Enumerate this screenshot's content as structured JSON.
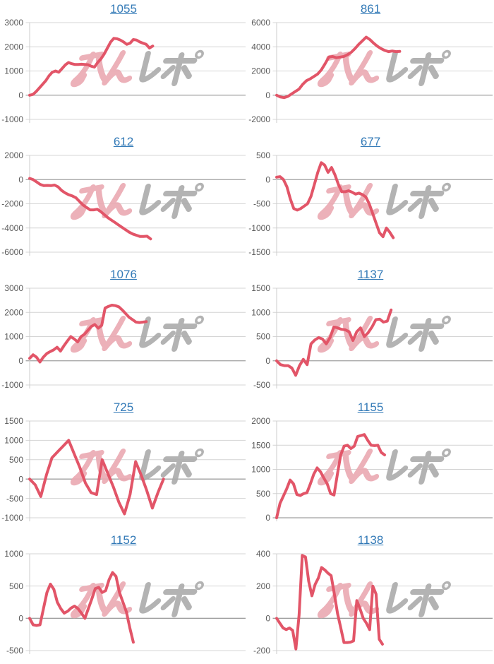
{
  "page": {
    "background": "#ffffff"
  },
  "watermark": {
    "text_pink": "みん",
    "text_gray": "レポ",
    "pink_color": "#eaa9b2",
    "gray_color": "#ababab"
  },
  "chart_style": {
    "line_color": "#e25568",
    "grid_color": "#d4d4d4",
    "zero_line_color": "#a0a0a0",
    "axis_color": "#cccccc",
    "label_color": "#595959",
    "title_color": "#337ab7"
  },
  "chart_data": [
    {
      "type": "line",
      "title": "1055",
      "yticks": [
        3000,
        2000,
        1000,
        0,
        -1000
      ],
      "ylim": [
        -1000,
        3000
      ],
      "span": 0.57,
      "values": [
        0,
        30,
        150,
        300,
        450,
        600,
        800,
        950,
        1000,
        950,
        1100,
        1250,
        1350,
        1300,
        1270,
        1270,
        1280,
        1270,
        1260,
        1200,
        1160,
        1350,
        1500,
        1700,
        1950,
        2200,
        2350,
        2330,
        2280,
        2200,
        2100,
        2150,
        2300,
        2280,
        2200,
        2150,
        2100,
        1950,
        2030
      ]
    },
    {
      "type": "line",
      "title": "861",
      "yticks": [
        6000,
        4000,
        2000,
        0,
        -2000
      ],
      "ylim": [
        -2000,
        6000
      ],
      "span": 0.57,
      "values": [
        0,
        -150,
        -200,
        -100,
        100,
        300,
        500,
        900,
        1200,
        1350,
        1550,
        1750,
        2100,
        2600,
        3150,
        3200,
        3100,
        3150,
        3200,
        3350,
        3550,
        3850,
        4200,
        4500,
        4800,
        4600,
        4300,
        4050,
        3850,
        3700,
        3600,
        3650,
        3600,
        3620
      ]
    },
    {
      "type": "line",
      "title": "612",
      "yticks": [
        2000,
        0,
        -2000,
        -4000,
        -6000
      ],
      "ylim": [
        -6000,
        2000
      ],
      "span": 0.56,
      "values": [
        100,
        0,
        -200,
        -400,
        -500,
        -480,
        -500,
        -450,
        -600,
        -900,
        -1100,
        -1250,
        -1350,
        -1500,
        -1800,
        -2100,
        -2300,
        -2500,
        -2500,
        -2450,
        -2650,
        -2900,
        -3150,
        -3350,
        -3550,
        -3750,
        -3950,
        -4150,
        -4350,
        -4500,
        -4600,
        -4700,
        -4700,
        -4680,
        -4900
      ]
    },
    {
      "type": "line",
      "title": "677",
      "yticks": [
        500,
        0,
        -500,
        -1000,
        -1500
      ],
      "ylim": [
        -1500,
        500
      ],
      "span": 0.54,
      "values": [
        50,
        60,
        0,
        -150,
        -400,
        -600,
        -630,
        -600,
        -550,
        -500,
        -350,
        -100,
        150,
        350,
        300,
        150,
        250,
        100,
        -100,
        -250,
        -250,
        -230,
        -260,
        -300,
        -280,
        -310,
        -360,
        -500,
        -700,
        -900,
        -1100,
        -1180,
        -1000,
        -1090,
        -1200
      ]
    },
    {
      "type": "line",
      "title": "1076",
      "yticks": [
        3000,
        2000,
        1000,
        0,
        -1000
      ],
      "ylim": [
        -1000,
        3000
      ],
      "span": 0.54,
      "values": [
        100,
        250,
        150,
        -50,
        150,
        300,
        380,
        450,
        560,
        400,
        620,
        820,
        1000,
        900,
        780,
        1000,
        1100,
        1260,
        1420,
        1500,
        1350,
        1460,
        2180,
        2250,
        2300,
        2280,
        2230,
        2100,
        1950,
        1800,
        1700,
        1600,
        1580,
        1600,
        1620
      ]
    },
    {
      "type": "line",
      "title": "1137",
      "yticks": [
        1500,
        1000,
        500,
        0,
        -500
      ],
      "ylim": [
        -500,
        1500
      ],
      "span": 0.53,
      "values": [
        0,
        -80,
        -100,
        -100,
        -150,
        -300,
        -100,
        30,
        -80,
        350,
        430,
        480,
        450,
        350,
        480,
        700,
        680,
        650,
        640,
        600,
        420,
        600,
        680,
        500,
        580,
        700,
        850,
        860,
        800,
        820,
        1050
      ]
    },
    {
      "type": "line",
      "title": "725",
      "yticks": [
        1500,
        1000,
        500,
        0,
        -500,
        -1000
      ],
      "ylim": [
        -1000,
        1500
      ],
      "span": 0.62,
      "values": [
        0,
        -150,
        -450,
        100,
        550,
        700,
        850,
        1000,
        650,
        300,
        -100,
        -350,
        -400,
        500,
        150,
        -200,
        -600,
        -900,
        -400,
        450,
        100,
        -300,
        -750,
        -350,
        0
      ]
    },
    {
      "type": "line",
      "title": "1155",
      "yticks": [
        2000,
        1500,
        1000,
        500,
        0
      ],
      "ylim": [
        0,
        2000
      ],
      "span": 0.5,
      "values": [
        0,
        300,
        450,
        600,
        780,
        700,
        480,
        460,
        500,
        520,
        700,
        900,
        1030,
        950,
        820,
        700,
        500,
        470,
        900,
        1300,
        1480,
        1500,
        1430,
        1480,
        1680,
        1700,
        1720,
        1600,
        1500,
        1490,
        1500,
        1350,
        1300
      ]
    },
    {
      "type": "line",
      "title": "1152",
      "yticks": [
        1000,
        500,
        0,
        -500
      ],
      "ylim": [
        -500,
        1000
      ],
      "span": 0.48,
      "values": [
        0,
        -100,
        -110,
        -100,
        150,
        400,
        530,
        450,
        250,
        150,
        80,
        110,
        160,
        190,
        150,
        80,
        0,
        150,
        300,
        460,
        480,
        400,
        430,
        600,
        710,
        650,
        400,
        250,
        100,
        -150,
        -370
      ]
    },
    {
      "type": "line",
      "title": "1138",
      "yticks": [
        400,
        200,
        0,
        -200
      ],
      "ylim": [
        -200,
        400
      ],
      "span": 0.49,
      "values": [
        0,
        -30,
        -60,
        -70,
        -60,
        -75,
        -190,
        20,
        390,
        380,
        230,
        140,
        210,
        250,
        315,
        300,
        280,
        265,
        150,
        30,
        -60,
        -150,
        -150,
        -148,
        -140,
        110,
        60,
        0,
        -30,
        -70,
        200,
        150,
        -130,
        -160
      ]
    }
  ]
}
